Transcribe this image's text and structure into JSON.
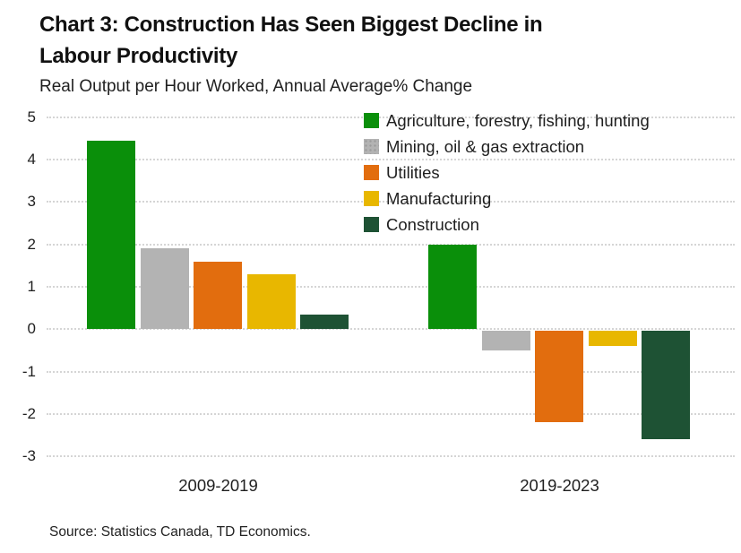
{
  "header": {
    "title": "Chart 3: Construction Has Seen Biggest Decline in Labour Productivity",
    "subtitle": "Real Output per Hour Worked, Annual Average% Change"
  },
  "footer": {
    "source": "Source: Statistics Canada, TD Economics."
  },
  "colors": {
    "agriculture_green": "#0a8f0a",
    "mining_gray": "#b3b3b3",
    "utilities_orange": "#e26d0e",
    "manufacturing_yellow": "#e8b700",
    "construction_darkgreen": "#1e5234",
    "gridline_gray": "#d5d5d5",
    "text": "#1a1a1a"
  },
  "chart_data": {
    "type": "bar",
    "categories": [
      "2009-2019",
      "2019-2023"
    ],
    "series": [
      {
        "name": "Agriculture, forestry, fishing, hunting",
        "color": "#0a8f0a",
        "textured": false,
        "values": [
          4.45,
          2.0
        ]
      },
      {
        "name": "Mining, oil & gas extraction",
        "color": "#b3b3b3",
        "textured": true,
        "values": [
          1.9,
          -0.5
        ]
      },
      {
        "name": "Utilities",
        "color": "#e26d0e",
        "textured": false,
        "values": [
          1.6,
          -2.2
        ]
      },
      {
        "name": "Manufacturing",
        "color": "#e8b700",
        "textured": false,
        "values": [
          1.3,
          -0.4
        ]
      },
      {
        "name": "Construction",
        "color": "#1e5234",
        "textured": false,
        "values": [
          0.35,
          -2.6
        ]
      }
    ],
    "title": "Chart 3: Construction Has Seen Biggest Decline in Labour Productivity",
    "subtitle": "Real Output per Hour Worked, Annual Average% Change",
    "xlabel": "",
    "ylabel": "",
    "ylim": [
      -3,
      5
    ],
    "yticks": [
      5,
      4,
      3,
      2,
      1,
      0,
      -1,
      -2,
      -3
    ],
    "grid": true,
    "legend_position": "top-right",
    "source": "Source: Statistics Canada, TD Economics."
  }
}
